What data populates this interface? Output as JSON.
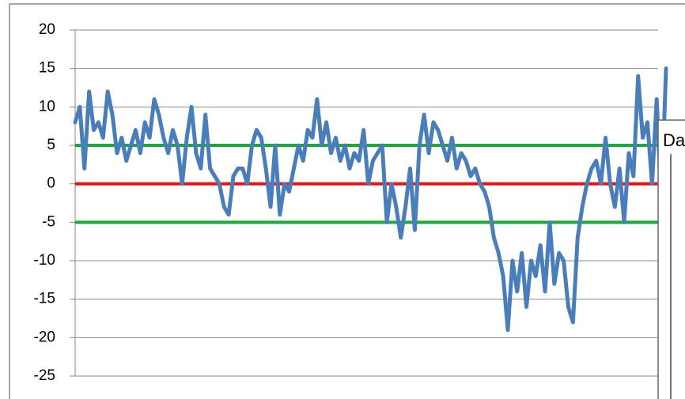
{
  "chart_data": {
    "type": "line",
    "series": [
      {
        "name": null,
        "color": "#4a7ebb",
        "values": [
          8,
          10,
          2,
          12,
          7,
          8,
          6,
          12,
          9,
          4,
          6,
          3,
          5,
          7,
          4,
          8,
          6,
          11,
          9,
          6,
          4,
          7,
          5,
          0,
          6,
          10,
          4,
          2,
          9,
          2,
          1,
          0,
          -3,
          -4,
          1,
          2,
          2,
          0,
          5,
          7,
          6,
          2,
          -3,
          5,
          -4,
          0,
          -1,
          2,
          5,
          3,
          7,
          6,
          11,
          5,
          8,
          4,
          6,
          3,
          5,
          2,
          4,
          3,
          7,
          0,
          3,
          4,
          5,
          -5,
          0,
          -3,
          -7,
          -3,
          2,
          -6,
          5,
          9,
          4,
          8,
          7,
          5,
          3,
          6,
          2,
          4,
          3,
          1,
          2,
          0,
          -1,
          -3,
          -7,
          -9,
          -12,
          -19,
          -10,
          -14,
          -9,
          -16,
          -10,
          -12,
          -8,
          -14,
          -5,
          -13,
          -9,
          -10,
          -16,
          -18,
          -7,
          -3,
          0,
          2,
          3,
          0,
          6,
          0,
          -3,
          2,
          -5,
          4,
          1,
          14,
          6,
          8,
          0,
          11,
          -3,
          15
        ]
      }
    ],
    "reference_lines": [
      {
        "value": 5,
        "color": "#1aaa3a"
      },
      {
        "value": 0,
        "color": "#ee1111"
      },
      {
        "value": -5,
        "color": "#1aaa3a"
      }
    ],
    "ylim": [
      -25,
      20
    ],
    "yticks": [
      20,
      15,
      10,
      5,
      0,
      -5,
      -10,
      -15,
      -20,
      -25
    ],
    "grid": true,
    "annotation": "Da"
  }
}
